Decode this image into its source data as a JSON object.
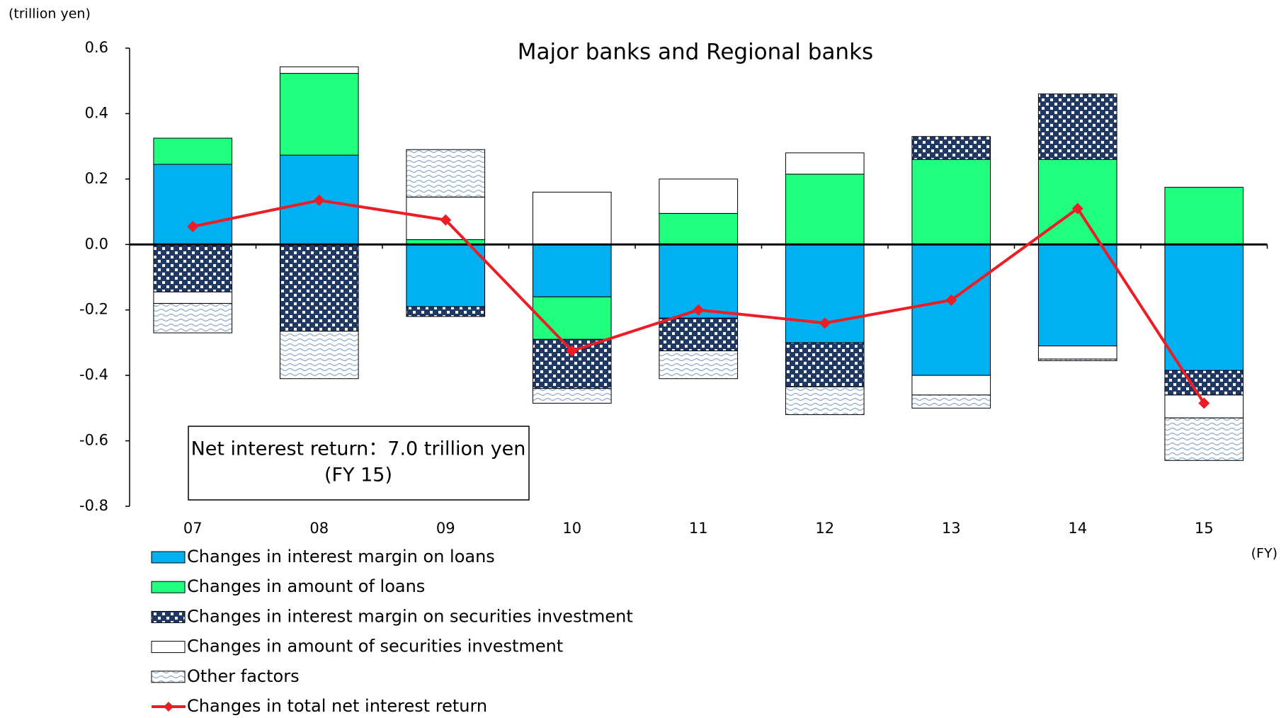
{
  "chart_data": {
    "type": "bar",
    "stacked": true,
    "title": "Major banks and Regional banks",
    "y_axis_label": "(trillion yen)",
    "x_axis_label": "(FY)",
    "annotation": [
      "Net interest return：7.0 trillion yen",
      "(FY 15)"
    ],
    "categories": [
      "07",
      "08",
      "09",
      "10",
      "11",
      "12",
      "13",
      "14",
      "15"
    ],
    "ylim": [
      -0.8,
      0.6
    ],
    "yticks": [
      0.6,
      0.4,
      0.2,
      {
        "value": 0,
        "label": "0.0"
      },
      -0.2,
      -0.4,
      -0.6,
      -0.8
    ],
    "series": [
      {
        "name": "Changes in interest margin on loans",
        "color": "#00b0f0",
        "values": [
          0.245,
          0.273,
          -0.19,
          -0.16,
          -0.225,
          -0.3,
          -0.4,
          -0.31,
          -0.385
        ]
      },
      {
        "name": "Changes in amount of loans",
        "color": "#21ff7f",
        "values": [
          0.08,
          0.25,
          0.015,
          -0.13,
          0.095,
          0.215,
          0.26,
          0.26,
          0.175
        ]
      },
      {
        "name": "Changes in interest margin on securities investment",
        "color": "#1f3864",
        "pattern": "checker",
        "values": [
          -0.145,
          -0.265,
          -0.03,
          -0.15,
          -0.1,
          -0.135,
          0.07,
          0.2,
          -0.075
        ]
      },
      {
        "name": "Changes in amount of securities investment",
        "color": "#ffffff",
        "values": [
          -0.035,
          0.02,
          0.13,
          0.16,
          0.105,
          0.065,
          -0.06,
          -0.04,
          -0.07
        ]
      },
      {
        "name": "Other factors",
        "color": "#8da9c4",
        "pattern": "wave",
        "values": [
          -0.09,
          -0.145,
          0.145,
          -0.045,
          -0.085,
          -0.085,
          -0.04,
          -0.005,
          -0.13
        ]
      },
      {
        "name": "Changes in total net interest return",
        "type": "line",
        "color": "#ee1c25",
        "values": [
          0.055,
          0.135,
          0.075,
          -0.325,
          -0.2,
          -0.24,
          -0.17,
          0.11,
          -0.485
        ]
      }
    ]
  }
}
